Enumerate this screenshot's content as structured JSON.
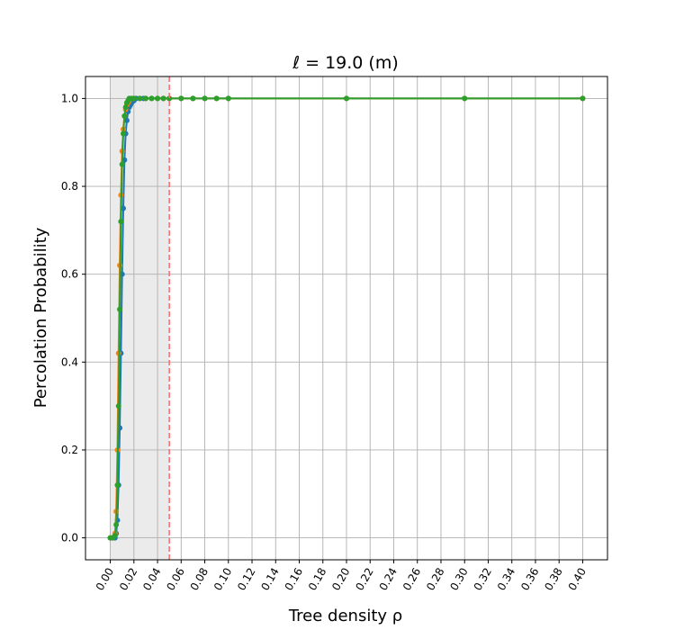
{
  "chart_data": {
    "type": "line",
    "title": "ℓ = 19.0 (m)",
    "xlabel": "Tree density ρ",
    "ylabel": "Percolation Probability",
    "xlim": [
      -0.021,
      0.421
    ],
    "ylim": [
      -0.05,
      1.05
    ],
    "x_ticks": [
      "0.00",
      "0.02",
      "0.04",
      "0.06",
      "0.08",
      "0.10",
      "0.12",
      "0.14",
      "0.16",
      "0.18",
      "0.20",
      "0.22",
      "0.24",
      "0.26",
      "0.28",
      "0.30",
      "0.32",
      "0.34",
      "0.36",
      "0.38",
      "0.40"
    ],
    "y_ticks": [
      "0.0",
      "0.2",
      "0.4",
      "0.6",
      "0.8",
      "1.0"
    ],
    "grid": true,
    "shaded_region": {
      "x_start": 0.0,
      "x_end": 0.05,
      "color": "#ebebeb"
    },
    "vline": {
      "x": 0.05,
      "color": "#ff6f6f",
      "style": "dashed"
    },
    "series": [
      {
        "color": "#1f77b4",
        "x": [
          0.0,
          0.002,
          0.004,
          0.005,
          0.006,
          0.007,
          0.008,
          0.009,
          0.01,
          0.011,
          0.012,
          0.013,
          0.014,
          0.015,
          0.016,
          0.017,
          0.018,
          0.02,
          0.022,
          0.025,
          0.028,
          0.03,
          0.035,
          0.04,
          0.045,
          0.05,
          0.06,
          0.07,
          0.08,
          0.09,
          0.1,
          0.2,
          0.3,
          0.4
        ],
        "y": [
          0.0,
          0.0,
          0.0,
          0.01,
          0.04,
          0.12,
          0.25,
          0.42,
          0.6,
          0.75,
          0.86,
          0.92,
          0.95,
          0.97,
          0.98,
          0.985,
          0.99,
          0.995,
          1.0,
          1.0,
          1.0,
          1.0,
          1.0,
          1.0,
          1.0,
          1.0,
          1.0,
          1.0,
          1.0,
          1.0,
          1.0,
          1.0,
          1.0,
          1.0
        ]
      },
      {
        "color": "#ff7f0e",
        "x": [
          0.0,
          0.002,
          0.004,
          0.005,
          0.006,
          0.007,
          0.008,
          0.009,
          0.01,
          0.011,
          0.012,
          0.013,
          0.014,
          0.015,
          0.016,
          0.018,
          0.02,
          0.025,
          0.03,
          0.035,
          0.04,
          0.045,
          0.05,
          0.06,
          0.07,
          0.08,
          0.09,
          0.1,
          0.2,
          0.3,
          0.4
        ],
        "y": [
          0.0,
          0.0,
          0.01,
          0.06,
          0.2,
          0.42,
          0.62,
          0.78,
          0.88,
          0.93,
          0.96,
          0.975,
          0.985,
          0.99,
          0.995,
          1.0,
          1.0,
          1.0,
          1.0,
          1.0,
          1.0,
          1.0,
          1.0,
          1.0,
          1.0,
          1.0,
          1.0,
          1.0,
          1.0,
          1.0,
          1.0
        ]
      },
      {
        "color": "#2ca02c",
        "x": [
          0.0,
          0.002,
          0.004,
          0.005,
          0.006,
          0.007,
          0.008,
          0.009,
          0.01,
          0.011,
          0.012,
          0.013,
          0.014,
          0.015,
          0.016,
          0.018,
          0.02,
          0.025,
          0.03,
          0.035,
          0.04,
          0.045,
          0.05,
          0.06,
          0.07,
          0.08,
          0.09,
          0.1,
          0.2,
          0.3,
          0.4
        ],
        "y": [
          0.0,
          0.0,
          0.005,
          0.03,
          0.12,
          0.3,
          0.52,
          0.72,
          0.85,
          0.92,
          0.96,
          0.98,
          0.99,
          0.995,
          1.0,
          1.0,
          1.0,
          1.0,
          1.0,
          1.0,
          1.0,
          1.0,
          1.0,
          1.0,
          1.0,
          1.0,
          1.0,
          1.0,
          1.0,
          1.0,
          1.0
        ]
      }
    ]
  }
}
